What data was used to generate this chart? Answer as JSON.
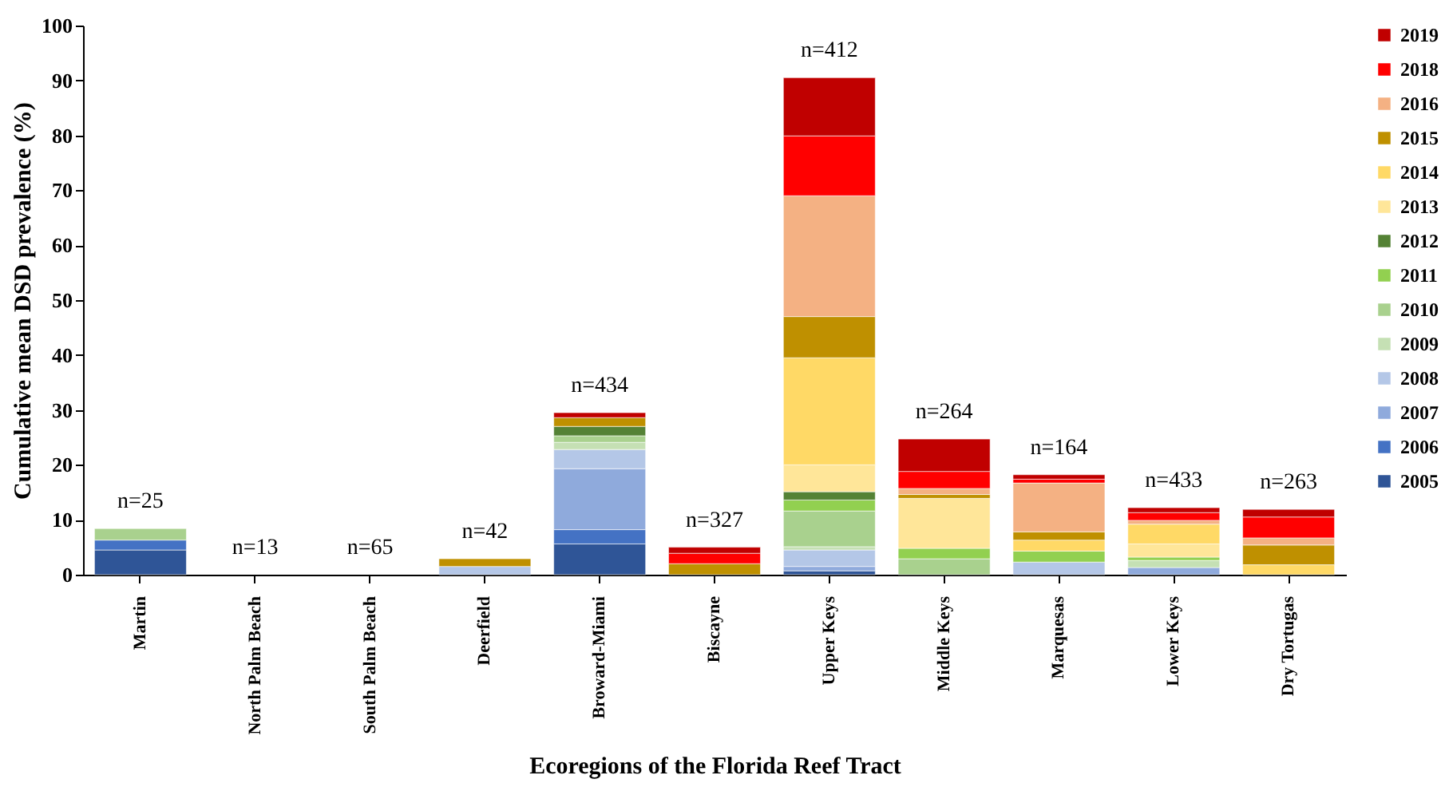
{
  "chart_data": {
    "type": "bar",
    "stacked": true,
    "xlabel": "Ecoregions of the Florida Reef Tract",
    "ylabel": "Cumulative mean DSD prevalence (%)",
    "categories": [
      "Martin",
      "North Palm Beach",
      "South Palm Beach",
      "Deerfield",
      "Broward-Miami",
      "Biscayne",
      "Upper Keys",
      "Middle Keys",
      "Marquesas",
      "Lower Keys",
      "Dry Tortugas"
    ],
    "series": [
      {
        "name": "2005",
        "color": "#2f5597",
        "values": [
          4.5,
          null,
          null,
          null,
          5.6,
          null,
          0.7,
          null,
          null,
          null,
          null
        ]
      },
      {
        "name": "2006",
        "color": "#4472c4",
        "values": [
          1.8,
          null,
          null,
          null,
          2.6,
          null,
          null,
          null,
          null,
          null,
          null
        ]
      },
      {
        "name": "2007",
        "color": "#8faadc",
        "values": [
          null,
          null,
          null,
          null,
          11.1,
          null,
          0.8,
          null,
          null,
          1.3,
          null
        ]
      },
      {
        "name": "2008",
        "color": "#b4c7e7",
        "values": [
          null,
          null,
          null,
          1.5,
          3.5,
          null,
          3.0,
          null,
          2.3,
          null,
          null
        ]
      },
      {
        "name": "2009",
        "color": "#c5e0b4",
        "values": [
          null,
          null,
          null,
          null,
          1.3,
          null,
          0.6,
          null,
          null,
          1.3,
          null
        ]
      },
      {
        "name": "2010",
        "color": "#a9d18e",
        "values": [
          2.1,
          null,
          null,
          null,
          1.2,
          null,
          6.5,
          2.9,
          null,
          null,
          null
        ]
      },
      {
        "name": "2011",
        "color": "#92d050",
        "values": [
          null,
          null,
          null,
          null,
          null,
          null,
          2.0,
          1.9,
          2.0,
          0.6,
          null
        ]
      },
      {
        "name": "2012",
        "color": "#548235",
        "values": [
          null,
          null,
          null,
          null,
          1.7,
          null,
          1.5,
          null,
          null,
          null,
          null
        ]
      },
      {
        "name": "2013",
        "color": "#ffe699",
        "values": [
          null,
          null,
          null,
          null,
          null,
          null,
          4.9,
          9.1,
          null,
          2.4,
          null
        ]
      },
      {
        "name": "2014",
        "color": "#ffd966",
        "values": [
          null,
          null,
          null,
          null,
          null,
          null,
          19.5,
          null,
          2.0,
          3.6,
          1.8
        ]
      },
      {
        "name": "2015",
        "color": "#bf9000",
        "values": [
          null,
          null,
          null,
          1.4,
          1.6,
          2.0,
          7.5,
          0.7,
          1.5,
          null,
          3.6
        ]
      },
      {
        "name": "2016",
        "color": "#f4b183",
        "values": [
          null,
          null,
          null,
          null,
          null,
          null,
          22.0,
          1.1,
          8.9,
          0.7,
          1.3
        ]
      },
      {
        "name": "2018",
        "color": "#ff0000",
        "values": [
          null,
          null,
          null,
          null,
          null,
          1.9,
          10.9,
          3.1,
          0.7,
          1.4,
          3.8
        ]
      },
      {
        "name": "2019",
        "color": "#c00000",
        "values": [
          null,
          null,
          null,
          null,
          0.9,
          1.1,
          10.6,
          5.9,
          0.8,
          0.9,
          1.4
        ]
      }
    ],
    "ylim": [
      0,
      100
    ],
    "yticks": [
      0,
      10,
      20,
      30,
      40,
      50,
      60,
      70,
      80,
      90,
      100
    ],
    "legend": "right",
    "annotations": [
      "n=25",
      "n=13",
      "n=65",
      "n=42",
      "n=434",
      "n=327",
      "n=412",
      "n=264",
      "n=164",
      "n=433",
      "n=263"
    ]
  }
}
